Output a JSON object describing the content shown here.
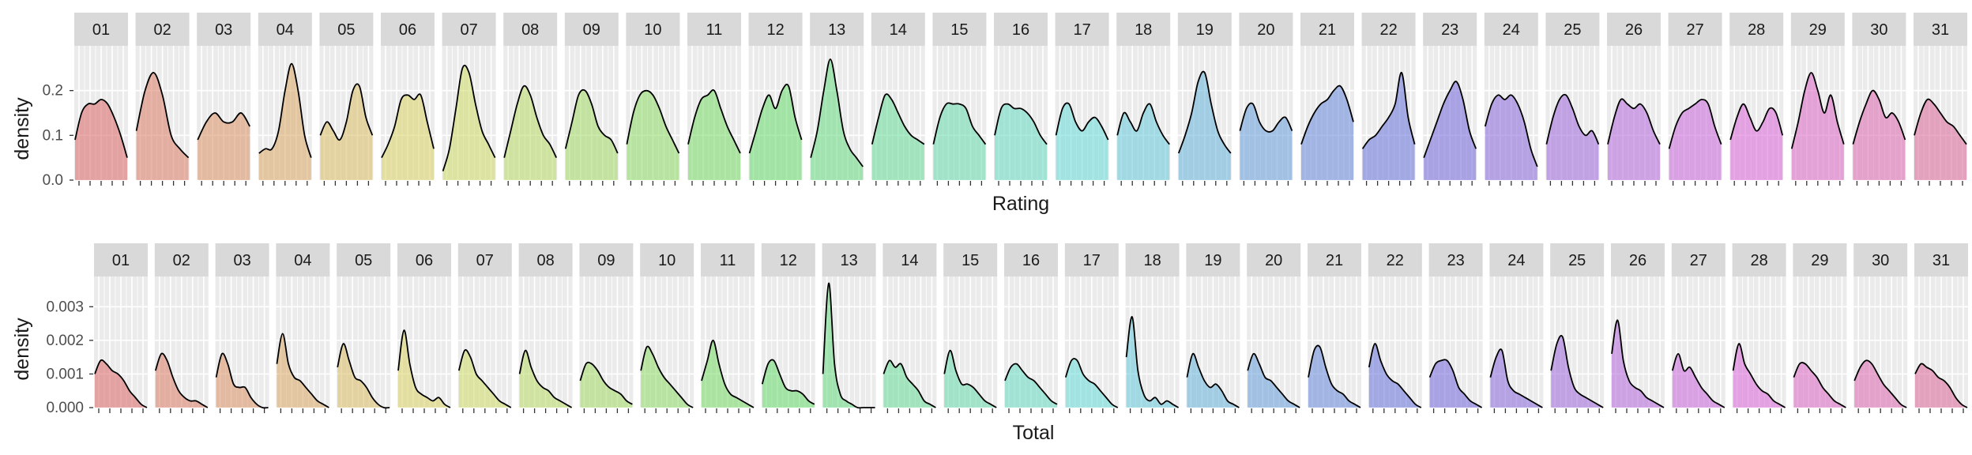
{
  "colors": {
    "panel_bg": "#EBEBEB",
    "strip_bg": "#D9D9D9",
    "grid": "#FFFFFF",
    "curve": "#000000",
    "fill_hue_start": 0,
    "fill_hue_end": 335
  },
  "chart_data": [
    {
      "type": "area",
      "facets": [
        "01",
        "02",
        "03",
        "04",
        "05",
        "06",
        "07",
        "08",
        "09",
        "10",
        "11",
        "12",
        "13",
        "14",
        "15",
        "16",
        "17",
        "18",
        "19",
        "20",
        "21",
        "22",
        "23",
        "24",
        "25",
        "26",
        "27",
        "28",
        "29",
        "30",
        "31"
      ],
      "xlabel": "Rating",
      "ylabel": "density",
      "ylim": [
        0,
        0.3
      ],
      "yticks": [
        "0.0",
        "0.1",
        "0.2"
      ],
      "ytick_values": [
        0,
        0.1,
        0.2
      ],
      "x_ticks_per_panel": 5,
      "grid": true,
      "legend": "none",
      "series": [
        {
          "facet": "01",
          "values": [
            0.09,
            0.15,
            0.17,
            0.17,
            0.18,
            0.17,
            0.14,
            0.1,
            0.05
          ]
        },
        {
          "facet": "02",
          "values": [
            0.11,
            0.2,
            0.24,
            0.19,
            0.1,
            0.07,
            0.05
          ]
        },
        {
          "facet": "03",
          "values": [
            0.09,
            0.13,
            0.15,
            0.13,
            0.13,
            0.15,
            0.12
          ]
        },
        {
          "facet": "04",
          "values": [
            0.06,
            0.07,
            0.07,
            0.11,
            0.2,
            0.26,
            0.2,
            0.1,
            0.05
          ]
        },
        {
          "facet": "05",
          "values": [
            0.1,
            0.13,
            0.11,
            0.09,
            0.13,
            0.2,
            0.21,
            0.14,
            0.1
          ]
        },
        {
          "facet": "06",
          "values": [
            0.05,
            0.08,
            0.12,
            0.18,
            0.19,
            0.18,
            0.19,
            0.13,
            0.07
          ]
        },
        {
          "facet": "07",
          "values": [
            0.02,
            0.07,
            0.16,
            0.25,
            0.24,
            0.17,
            0.11,
            0.08,
            0.05
          ]
        },
        {
          "facet": "08",
          "values": [
            0.05,
            0.11,
            0.17,
            0.21,
            0.19,
            0.14,
            0.1,
            0.08,
            0.05
          ]
        },
        {
          "facet": "09",
          "values": [
            0.07,
            0.13,
            0.19,
            0.2,
            0.17,
            0.12,
            0.1,
            0.09,
            0.06
          ]
        },
        {
          "facet": "10",
          "values": [
            0.08,
            0.15,
            0.19,
            0.2,
            0.19,
            0.16,
            0.12,
            0.09,
            0.06
          ]
        },
        {
          "facet": "11",
          "values": [
            0.08,
            0.14,
            0.18,
            0.19,
            0.2,
            0.16,
            0.12,
            0.09,
            0.06
          ]
        },
        {
          "facet": "12",
          "values": [
            0.06,
            0.11,
            0.16,
            0.19,
            0.16,
            0.2,
            0.21,
            0.14,
            0.09
          ]
        },
        {
          "facet": "13",
          "values": [
            0.05,
            0.11,
            0.2,
            0.27,
            0.2,
            0.11,
            0.07,
            0.05,
            0.03
          ]
        },
        {
          "facet": "14",
          "values": [
            0.08,
            0.14,
            0.19,
            0.18,
            0.15,
            0.12,
            0.1,
            0.09,
            0.08
          ]
        },
        {
          "facet": "15",
          "values": [
            0.08,
            0.14,
            0.17,
            0.17,
            0.17,
            0.16,
            0.12,
            0.1,
            0.08
          ]
        },
        {
          "facet": "16",
          "values": [
            0.1,
            0.16,
            0.17,
            0.16,
            0.16,
            0.15,
            0.13,
            0.1,
            0.08
          ]
        },
        {
          "facet": "17",
          "values": [
            0.1,
            0.16,
            0.17,
            0.13,
            0.11,
            0.13,
            0.14,
            0.12,
            0.09
          ]
        },
        {
          "facet": "18",
          "values": [
            0.1,
            0.15,
            0.13,
            0.11,
            0.15,
            0.17,
            0.13,
            0.1,
            0.08
          ]
        },
        {
          "facet": "19",
          "values": [
            0.06,
            0.1,
            0.15,
            0.22,
            0.24,
            0.17,
            0.11,
            0.08,
            0.06
          ]
        },
        {
          "facet": "20",
          "values": [
            0.11,
            0.16,
            0.17,
            0.13,
            0.11,
            0.11,
            0.13,
            0.14,
            0.11
          ]
        },
        {
          "facet": "21",
          "values": [
            0.08,
            0.12,
            0.15,
            0.17,
            0.18,
            0.2,
            0.21,
            0.18,
            0.13
          ]
        },
        {
          "facet": "22",
          "values": [
            0.07,
            0.09,
            0.1,
            0.12,
            0.14,
            0.17,
            0.24,
            0.14,
            0.08
          ]
        },
        {
          "facet": "23",
          "values": [
            0.05,
            0.09,
            0.13,
            0.17,
            0.2,
            0.22,
            0.18,
            0.11,
            0.07
          ]
        },
        {
          "facet": "24",
          "values": [
            0.12,
            0.17,
            0.19,
            0.18,
            0.19,
            0.17,
            0.13,
            0.07,
            0.03
          ]
        },
        {
          "facet": "25",
          "values": [
            0.08,
            0.14,
            0.18,
            0.19,
            0.16,
            0.12,
            0.1,
            0.11,
            0.08
          ]
        },
        {
          "facet": "26",
          "values": [
            0.08,
            0.14,
            0.18,
            0.17,
            0.16,
            0.17,
            0.15,
            0.11,
            0.08
          ]
        },
        {
          "facet": "27",
          "values": [
            0.07,
            0.12,
            0.15,
            0.16,
            0.17,
            0.18,
            0.17,
            0.12,
            0.08
          ]
        },
        {
          "facet": "28",
          "values": [
            0.09,
            0.14,
            0.17,
            0.14,
            0.11,
            0.13,
            0.16,
            0.15,
            0.1
          ]
        },
        {
          "facet": "29",
          "values": [
            0.07,
            0.13,
            0.2,
            0.24,
            0.2,
            0.15,
            0.19,
            0.13,
            0.08
          ]
        },
        {
          "facet": "30",
          "values": [
            0.08,
            0.13,
            0.17,
            0.2,
            0.18,
            0.14,
            0.15,
            0.13,
            0.09
          ]
        },
        {
          "facet": "31",
          "values": [
            0.1,
            0.15,
            0.18,
            0.17,
            0.15,
            0.13,
            0.12,
            0.1,
            0.08
          ]
        }
      ]
    },
    {
      "type": "area",
      "facets": [
        "01",
        "02",
        "03",
        "04",
        "05",
        "06",
        "07",
        "08",
        "09",
        "10",
        "11",
        "12",
        "13",
        "14",
        "15",
        "16",
        "17",
        "18",
        "19",
        "20",
        "21",
        "22",
        "23",
        "24",
        "25",
        "26",
        "27",
        "28",
        "29",
        "30",
        "31"
      ],
      "xlabel": "Total",
      "ylabel": "density",
      "ylim": [
        0,
        0.0039
      ],
      "yticks": [
        "0.000",
        "0.001",
        "0.002",
        "0.003"
      ],
      "ytick_values": [
        0,
        0.001,
        0.002,
        0.003
      ],
      "x_ticks_per_panel": 5,
      "grid": true,
      "legend": "none",
      "series": [
        {
          "facet": "01",
          "values": [
            0.001,
            0.0014,
            0.0013,
            0.0011,
            0.001,
            0.0008,
            0.0005,
            0.0003,
            0.0001,
            0.0
          ]
        },
        {
          "facet": "02",
          "values": [
            0.0011,
            0.0016,
            0.0014,
            0.0009,
            0.0005,
            0.0003,
            0.0002,
            0.0002,
            0.0001,
            0.0
          ]
        },
        {
          "facet": "03",
          "values": [
            0.0009,
            0.0016,
            0.0013,
            0.0007,
            0.0006,
            0.0006,
            0.0003,
            0.0001,
            0.0,
            0.0
          ]
        },
        {
          "facet": "04",
          "values": [
            0.0013,
            0.0022,
            0.0013,
            0.0009,
            0.0008,
            0.0006,
            0.0004,
            0.0002,
            0.0001,
            0.0
          ]
        },
        {
          "facet": "05",
          "values": [
            0.0012,
            0.0019,
            0.0014,
            0.0009,
            0.0008,
            0.0006,
            0.0003,
            0.0001,
            0.0,
            0.0
          ]
        },
        {
          "facet": "06",
          "values": [
            0.0011,
            0.0023,
            0.0013,
            0.0006,
            0.0004,
            0.0003,
            0.0002,
            0.0003,
            0.0001,
            0.0
          ]
        },
        {
          "facet": "07",
          "values": [
            0.0011,
            0.0017,
            0.0015,
            0.001,
            0.0008,
            0.0006,
            0.0004,
            0.0002,
            0.0001,
            0.0
          ]
        },
        {
          "facet": "08",
          "values": [
            0.001,
            0.0017,
            0.0012,
            0.0008,
            0.0006,
            0.0005,
            0.0003,
            0.0002,
            0.0001,
            0.0
          ]
        },
        {
          "facet": "09",
          "values": [
            0.0008,
            0.0013,
            0.0013,
            0.0011,
            0.0008,
            0.0006,
            0.0005,
            0.0004,
            0.0002,
            0.0001
          ]
        },
        {
          "facet": "10",
          "values": [
            0.0011,
            0.0018,
            0.0016,
            0.0012,
            0.0009,
            0.0007,
            0.0005,
            0.0003,
            0.0001,
            0.0
          ]
        },
        {
          "facet": "11",
          "values": [
            0.0008,
            0.0014,
            0.002,
            0.0013,
            0.0007,
            0.0004,
            0.0003,
            0.0002,
            0.0001,
            0.0
          ]
        },
        {
          "facet": "12",
          "values": [
            0.0007,
            0.0013,
            0.0014,
            0.001,
            0.0006,
            0.0005,
            0.0005,
            0.0004,
            0.0002,
            0.0001
          ]
        },
        {
          "facet": "13",
          "values": [
            0.001,
            0.0037,
            0.0013,
            0.0004,
            0.0002,
            0.0001,
            0.0,
            0.0,
            0.0,
            0.0
          ]
        },
        {
          "facet": "14",
          "values": [
            0.001,
            0.0014,
            0.0012,
            0.0013,
            0.0009,
            0.0007,
            0.0005,
            0.0002,
            0.0001,
            0.0
          ]
        },
        {
          "facet": "15",
          "values": [
            0.001,
            0.0017,
            0.0011,
            0.0007,
            0.0007,
            0.0006,
            0.0004,
            0.0002,
            0.0001,
            0.0
          ]
        },
        {
          "facet": "16",
          "values": [
            0.0008,
            0.0012,
            0.0013,
            0.0011,
            0.0009,
            0.0008,
            0.0006,
            0.0004,
            0.0002,
            0.0001
          ]
        },
        {
          "facet": "17",
          "values": [
            0.0009,
            0.0014,
            0.0014,
            0.001,
            0.0008,
            0.0007,
            0.0005,
            0.0003,
            0.0001,
            0.0
          ]
        },
        {
          "facet": "18",
          "values": [
            0.0015,
            0.0027,
            0.0011,
            0.0004,
            0.0002,
            0.0003,
            0.0001,
            0.0002,
            0.0001,
            0.0
          ]
        },
        {
          "facet": "19",
          "values": [
            0.0009,
            0.0016,
            0.0012,
            0.0008,
            0.0006,
            0.0007,
            0.0005,
            0.0002,
            0.0001,
            0.0
          ]
        },
        {
          "facet": "20",
          "values": [
            0.0011,
            0.0016,
            0.0013,
            0.0009,
            0.0008,
            0.0006,
            0.0004,
            0.0002,
            0.0001,
            0.0
          ]
        },
        {
          "facet": "21",
          "values": [
            0.0009,
            0.0017,
            0.0018,
            0.0012,
            0.0007,
            0.0005,
            0.0004,
            0.0002,
            0.0001,
            0.0
          ]
        },
        {
          "facet": "22",
          "values": [
            0.0012,
            0.0019,
            0.0014,
            0.001,
            0.0008,
            0.0007,
            0.0005,
            0.0003,
            0.0001,
            0.0
          ]
        },
        {
          "facet": "23",
          "values": [
            0.0009,
            0.0013,
            0.0014,
            0.0014,
            0.0011,
            0.0006,
            0.0004,
            0.0002,
            0.0001,
            0.0
          ]
        },
        {
          "facet": "24",
          "values": [
            0.0009,
            0.0015,
            0.0017,
            0.0008,
            0.0005,
            0.0004,
            0.0003,
            0.0002,
            0.0001,
            0.0
          ]
        },
        {
          "facet": "25",
          "values": [
            0.0011,
            0.0019,
            0.0021,
            0.0012,
            0.0006,
            0.0004,
            0.0003,
            0.0002,
            0.0001,
            0.0
          ]
        },
        {
          "facet": "26",
          "values": [
            0.0016,
            0.0026,
            0.0014,
            0.0008,
            0.0006,
            0.0005,
            0.0003,
            0.0002,
            0.0001,
            0.0
          ]
        },
        {
          "facet": "27",
          "values": [
            0.0011,
            0.0016,
            0.0011,
            0.0012,
            0.0009,
            0.0006,
            0.0004,
            0.0002,
            0.0001,
            0.0
          ]
        },
        {
          "facet": "28",
          "values": [
            0.0011,
            0.0019,
            0.0013,
            0.001,
            0.0007,
            0.0005,
            0.0004,
            0.0002,
            0.0001,
            0.0
          ]
        },
        {
          "facet": "29",
          "values": [
            0.0009,
            0.0013,
            0.0013,
            0.0011,
            0.0009,
            0.0006,
            0.0004,
            0.0002,
            0.0001,
            0.0
          ]
        },
        {
          "facet": "30",
          "values": [
            0.0008,
            0.0012,
            0.0014,
            0.0013,
            0.001,
            0.0007,
            0.0005,
            0.0003,
            0.0001,
            0.0
          ]
        },
        {
          "facet": "31",
          "values": [
            0.001,
            0.0013,
            0.0012,
            0.0011,
            0.0009,
            0.0008,
            0.0006,
            0.0003,
            0.0001,
            0.0
          ]
        }
      ]
    }
  ]
}
